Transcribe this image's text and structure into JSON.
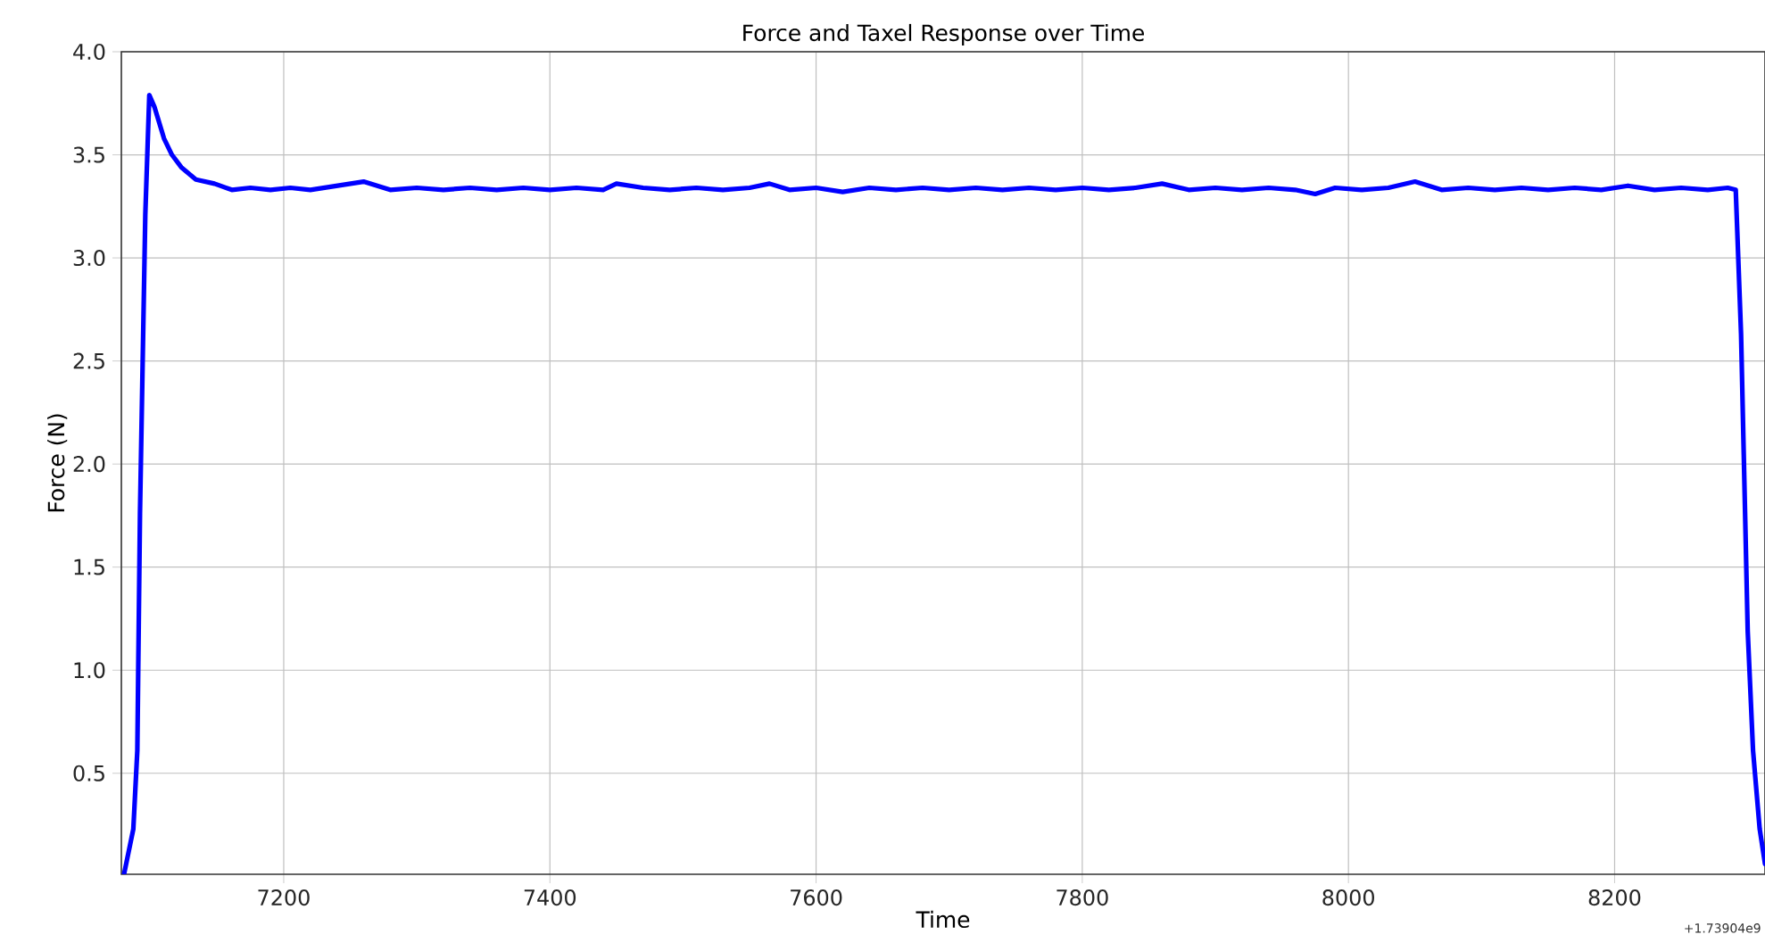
{
  "chart_data": {
    "type": "line",
    "title": "Force and Taxel Response over Time",
    "xlabel": "Time",
    "ylabel": "Force (N)",
    "annotations": [
      "+1.73904e9"
    ],
    "xlim": [
      7078,
      8313
    ],
    "ylim": [
      0.01,
      4.0
    ],
    "xticks": [
      7200,
      7400,
      7600,
      7800,
      8000,
      8200
    ],
    "yticks": [
      {
        "value": 0.5,
        "label": "0.5"
      },
      {
        "value": 1.0,
        "label": "1.0"
      },
      {
        "value": 1.5,
        "label": "1.5"
      },
      {
        "value": 2.0,
        "label": "2.0"
      },
      {
        "value": 2.5,
        "label": "2.5"
      },
      {
        "value": 3.0,
        "label": "3.0"
      },
      {
        "value": 3.5,
        "label": "3.5"
      },
      {
        "value": 4.0,
        "label": "4.0"
      }
    ],
    "grid": true,
    "marker": "none",
    "line_style": "solid",
    "series": [
      {
        "color": "#0000ff",
        "x": [
          7080,
          7087,
          7090,
          7092,
          7094,
          7096,
          7099,
          7103,
          7110,
          7116,
          7123,
          7134,
          7148,
          7161,
          7175,
          7190,
          7205,
          7220,
          7240,
          7260,
          7280,
          7300,
          7320,
          7340,
          7360,
          7380,
          7400,
          7420,
          7440,
          7450,
          7470,
          7490,
          7510,
          7530,
          7550,
          7565,
          7580,
          7600,
          7620,
          7640,
          7660,
          7680,
          7700,
          7720,
          7740,
          7760,
          7780,
          7800,
          7820,
          7840,
          7860,
          7880,
          7900,
          7920,
          7940,
          7960,
          7975,
          7990,
          8010,
          8030,
          8050,
          8070,
          8090,
          8110,
          8130,
          8150,
          8170,
          8190,
          8210,
          8230,
          8250,
          8270,
          8285,
          8291,
          8295,
          8300,
          8304,
          8309,
          8313
        ],
        "values": [
          0.01,
          0.23,
          0.61,
          1.76,
          2.49,
          3.21,
          3.79,
          3.73,
          3.58,
          3.5,
          3.44,
          3.38,
          3.36,
          3.33,
          3.34,
          3.33,
          3.34,
          3.33,
          3.35,
          3.37,
          3.33,
          3.34,
          3.33,
          3.34,
          3.33,
          3.34,
          3.33,
          3.34,
          3.33,
          3.36,
          3.34,
          3.33,
          3.34,
          3.33,
          3.34,
          3.36,
          3.33,
          3.34,
          3.32,
          3.34,
          3.33,
          3.34,
          3.33,
          3.34,
          3.33,
          3.34,
          3.33,
          3.34,
          3.33,
          3.34,
          3.36,
          3.33,
          3.34,
          3.33,
          3.34,
          3.33,
          3.31,
          3.34,
          3.33,
          3.34,
          3.37,
          3.33,
          3.34,
          3.33,
          3.34,
          3.33,
          3.34,
          3.33,
          3.35,
          3.33,
          3.34,
          3.33,
          3.34,
          3.33,
          2.63,
          1.19,
          0.61,
          0.23,
          0.06
        ]
      }
    ]
  }
}
